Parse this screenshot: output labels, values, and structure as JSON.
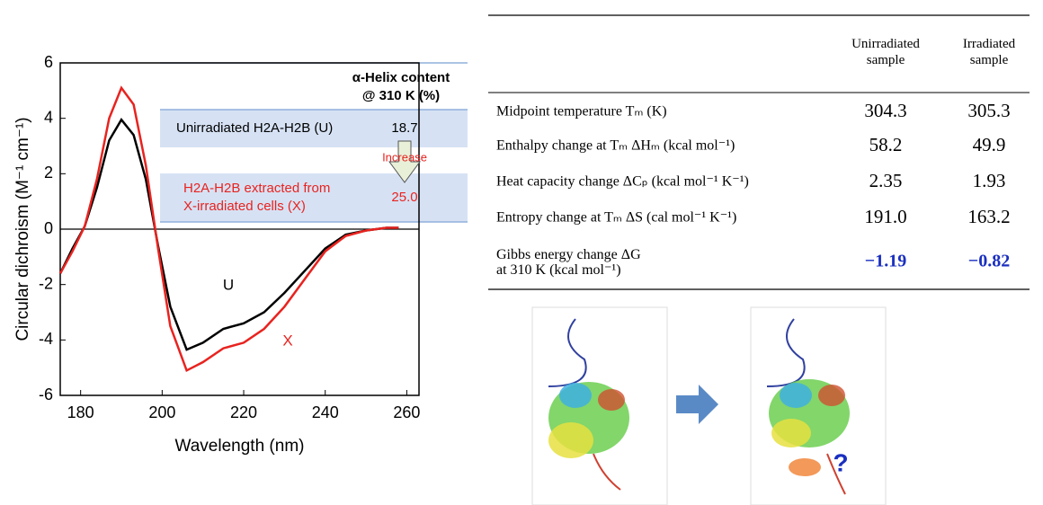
{
  "chart_data": {
    "type": "line",
    "xlabel": "Wavelength (nm)",
    "ylabel": "Circular dichroism (M⁻¹ cm⁻¹)",
    "x": [
      175,
      178,
      181,
      184,
      187,
      190,
      193,
      196,
      199,
      202,
      206,
      210,
      215,
      220,
      225,
      230,
      235,
      240,
      245,
      250,
      255,
      258
    ],
    "series": [
      {
        "name": "U",
        "color": "#000000",
        "values": [
          -1.6,
          -0.7,
          0.1,
          1.5,
          3.2,
          3.95,
          3.4,
          1.8,
          -0.6,
          -2.8,
          -4.35,
          -4.1,
          -3.6,
          -3.4,
          -3.0,
          -2.3,
          -1.5,
          -0.7,
          -0.2,
          -0.05,
          0.05,
          0.05
        ]
      },
      {
        "name": "X",
        "color": "#e8231f",
        "values": [
          -1.6,
          -0.8,
          0.1,
          1.8,
          4.0,
          5.1,
          4.5,
          2.3,
          -0.7,
          -3.5,
          -5.1,
          -4.8,
          -4.3,
          -4.1,
          -3.6,
          -2.8,
          -1.8,
          -0.8,
          -0.25,
          -0.05,
          0.05,
          0.05
        ]
      }
    ],
    "xlim": [
      175,
      263
    ],
    "xticks": [
      180,
      200,
      220,
      240,
      260
    ],
    "ylim": [
      -6,
      6
    ],
    "yticks": [
      -6,
      -4,
      -2,
      0,
      2,
      4,
      6
    ],
    "inset": {
      "title_1": "α-Helix content",
      "title_2": "@ 310 K (%)",
      "row_u": "Unirradiated H2A-H2B (U)",
      "value_u": "18.7",
      "arrow_label": "Increase",
      "row_x_1": "H2A-H2B extracted from",
      "row_x_2": "X-irradiated cells (X)",
      "value_x": "25.0"
    }
  },
  "table": {
    "header": [
      "Unirradiated sample",
      "Irradiated sample"
    ],
    "rows": [
      [
        "Midpoint temperature  Tₘ (K)",
        "304.3",
        "305.3"
      ],
      [
        "Enthalpy change at Tₘ  ΔHₘ (kcal mol⁻¹)",
        "58.2",
        "49.9"
      ],
      [
        "Heat capacity change  ΔCₚ (kcal mol⁻¹ K⁻¹)",
        "2.35",
        "1.93"
      ],
      [
        "Entropy change at Tₘ  ΔS (cal mol⁻¹ K⁻¹)",
        "191.0",
        "163.2"
      ],
      [
        "Gibbs energy change  ΔG at 310 K (kcal mol⁻¹)",
        "−1.19",
        "−0.82"
      ]
    ]
  },
  "images": {
    "question_mark": "?"
  }
}
